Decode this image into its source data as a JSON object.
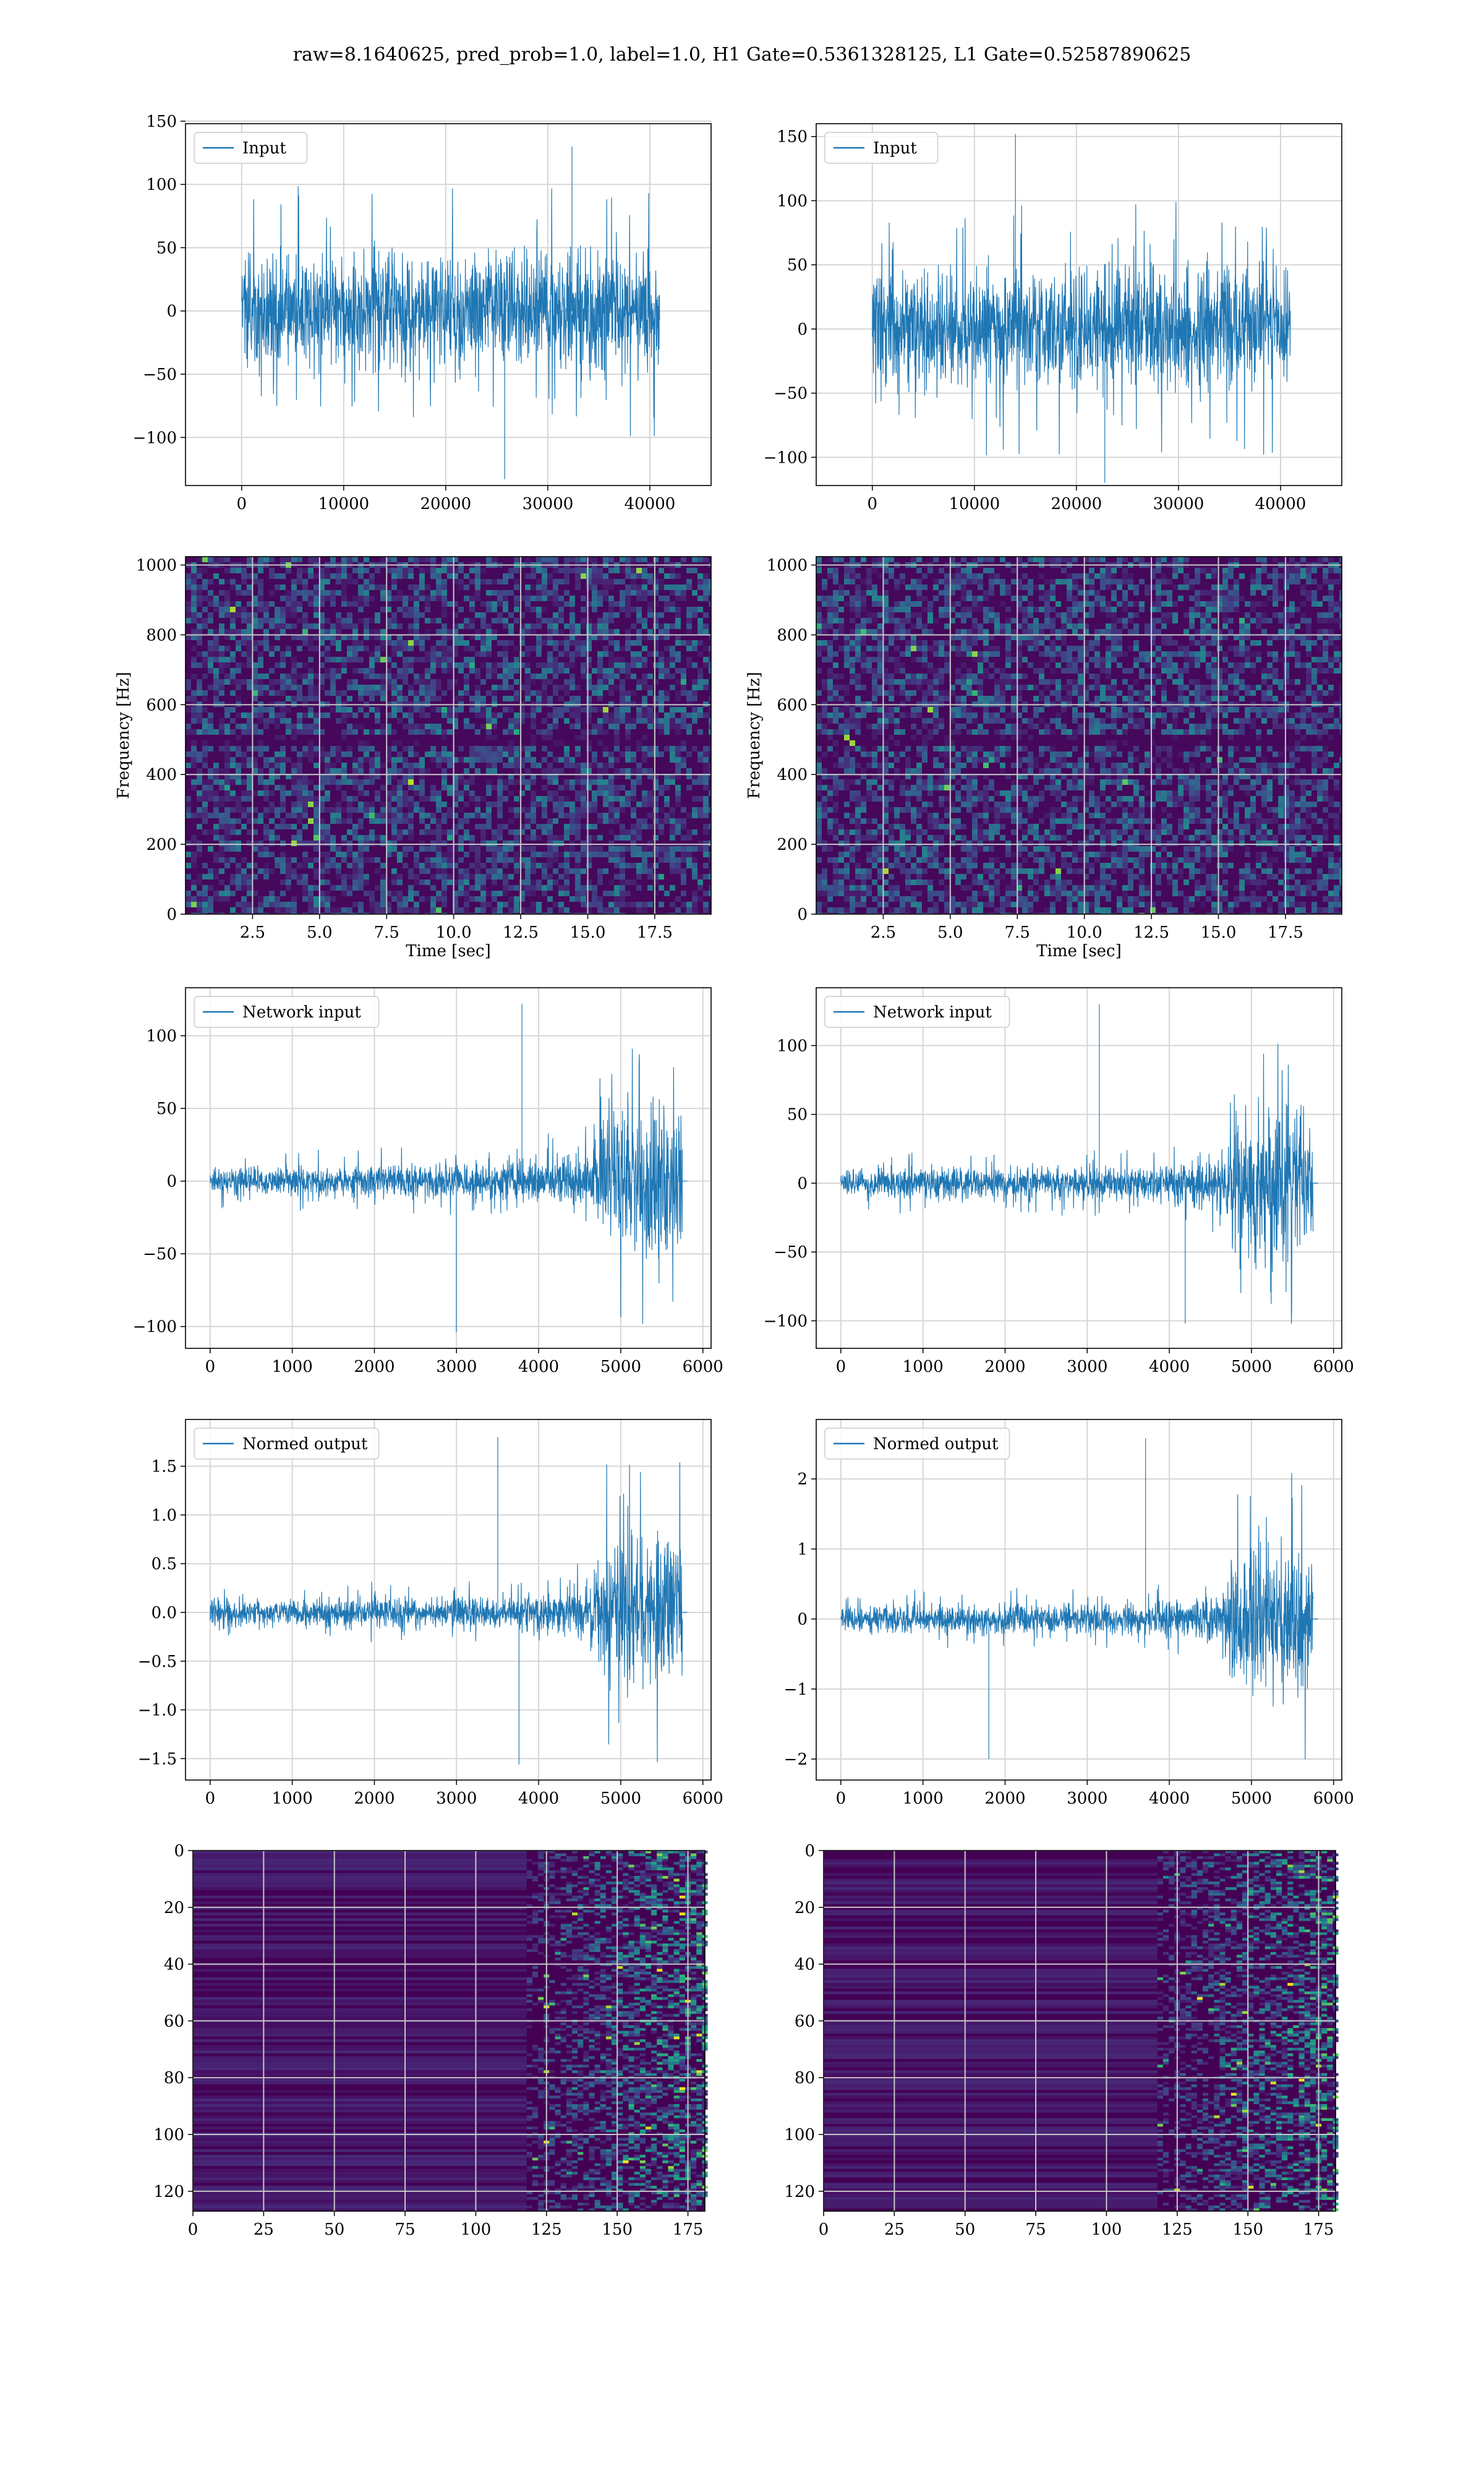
{
  "figure": {
    "suptitle": "raw=8.1640625, pred_prob=1.0, label=1.0, H1 Gate=0.5361328125, L1 Gate=0.52587890625"
  },
  "colors": {
    "line": "#1f77b4",
    "grid": "#d6d6d6",
    "viridis_low": "#440154",
    "viridis_mid": "#21918c",
    "viridis_high": "#fde725"
  },
  "chart_data": [
    {
      "id": "input-h1",
      "type": "line",
      "legend": "Input",
      "xlim": [
        -5500,
        46000
      ],
      "ylim": [
        -138,
        148
      ],
      "xticks": [
        0,
        10000,
        20000,
        30000,
        40000
      ],
      "yticks": [
        -100,
        -50,
        0,
        50,
        100,
        150
      ],
      "series": [
        {
          "x_start": 0,
          "x_end": 40960,
          "typical_amplitude": 55,
          "extremes": {
            "max": 130,
            "min": -133
          }
        }
      ]
    },
    {
      "id": "input-l1",
      "type": "line",
      "legend": "Input",
      "xlim": [
        -5500,
        46000
      ],
      "ylim": [
        -122,
        160
      ],
      "xticks": [
        0,
        10000,
        20000,
        30000,
        40000
      ],
      "yticks": [
        -100,
        -50,
        0,
        50,
        100,
        150
      ],
      "series": [
        {
          "x_start": 0,
          "x_end": 40960,
          "typical_amplitude": 55,
          "extremes": {
            "max": 152,
            "min": -120
          }
        }
      ]
    },
    {
      "id": "spectrogram-h1",
      "type": "heatmap",
      "xlabel": "Time [sec]",
      "ylabel": "Frequency [Hz]",
      "xlim": [
        0,
        19.6
      ],
      "ylim": [
        0,
        1024
      ],
      "xticks": [
        2.5,
        5.0,
        7.5,
        10.0,
        12.5,
        15.0,
        17.5
      ],
      "yticks": [
        0,
        200,
        400,
        600,
        800,
        1000
      ],
      "colormap": "viridis"
    },
    {
      "id": "spectrogram-l1",
      "type": "heatmap",
      "xlabel": "Time [sec]",
      "ylabel": "Frequency [Hz]",
      "xlim": [
        0,
        19.6
      ],
      "ylim": [
        0,
        1024
      ],
      "xticks": [
        2.5,
        5.0,
        7.5,
        10.0,
        12.5,
        15.0,
        17.5
      ],
      "yticks": [
        0,
        200,
        400,
        600,
        800,
        1000
      ],
      "colormap": "viridis"
    },
    {
      "id": "network-input-h1",
      "type": "line",
      "legend": "Network input",
      "xlim": [
        -300,
        6100
      ],
      "ylim": [
        -115,
        133
      ],
      "xticks": [
        0,
        1000,
        2000,
        3000,
        4000,
        5000,
        6000
      ],
      "yticks": [
        -100,
        -50,
        0,
        50,
        100
      ],
      "series": [
        {
          "x_start": 0,
          "x_end": 5750,
          "baseline_amplitude": 12,
          "burst_start": 4600,
          "burst_amplitude": 60,
          "extremes": {
            "max": 122,
            "min": -104
          }
        }
      ]
    },
    {
      "id": "network-input-l1",
      "type": "line",
      "legend": "Network input",
      "xlim": [
        -300,
        6100
      ],
      "ylim": [
        -120,
        142
      ],
      "xticks": [
        0,
        1000,
        2000,
        3000,
        4000,
        5000,
        6000
      ],
      "yticks": [
        -100,
        -50,
        0,
        50,
        100
      ],
      "series": [
        {
          "x_start": 0,
          "x_end": 5750,
          "baseline_amplitude": 12,
          "burst_start": 4600,
          "burst_amplitude": 60,
          "extremes": {
            "max": 130,
            "min": -102
          }
        }
      ]
    },
    {
      "id": "normed-output-h1",
      "type": "line",
      "legend": "Normed output",
      "xlim": [
        -300,
        6100
      ],
      "ylim": [
        -1.72,
        1.98
      ],
      "xticks": [
        0,
        1000,
        2000,
        3000,
        4000,
        5000,
        6000
      ],
      "yticks": [
        -1.5,
        -1.0,
        -0.5,
        0.0,
        0.5,
        1.0,
        1.5
      ],
      "series": [
        {
          "x_start": 0,
          "x_end": 5750,
          "baseline_amplitude": 0.16,
          "burst_start": 4600,
          "burst_amplitude": 0.9,
          "extremes": {
            "max": 1.8,
            "min": -1.56
          }
        }
      ]
    },
    {
      "id": "normed-output-l1",
      "type": "line",
      "legend": "Normed output",
      "xlim": [
        -300,
        6100
      ],
      "ylim": [
        -2.3,
        2.85
      ],
      "xticks": [
        0,
        1000,
        2000,
        3000,
        4000,
        5000,
        6000
      ],
      "yticks": [
        -2,
        -1,
        0,
        1,
        2
      ],
      "series": [
        {
          "x_start": 0,
          "x_end": 5750,
          "baseline_amplitude": 0.22,
          "burst_start": 4600,
          "burst_amplitude": 1.2,
          "extremes": {
            "max": 2.58,
            "min": -2.0
          }
        }
      ]
    },
    {
      "id": "feature-map-h1",
      "type": "heatmap",
      "xlim": [
        0,
        181
      ],
      "ylim": [
        127,
        0
      ],
      "xticks": [
        0,
        25,
        50,
        75,
        100,
        125,
        150,
        175
      ],
      "yticks": [
        0,
        20,
        40,
        60,
        80,
        100,
        120
      ],
      "colormap": "viridis",
      "activity_onset": 118
    },
    {
      "id": "feature-map-l1",
      "type": "heatmap",
      "xlim": [
        0,
        181
      ],
      "ylim": [
        127,
        0
      ],
      "xticks": [
        0,
        25,
        50,
        75,
        100,
        125,
        150,
        175
      ],
      "yticks": [
        0,
        20,
        40,
        60,
        80,
        100,
        120
      ],
      "colormap": "viridis",
      "activity_onset": 118
    }
  ]
}
